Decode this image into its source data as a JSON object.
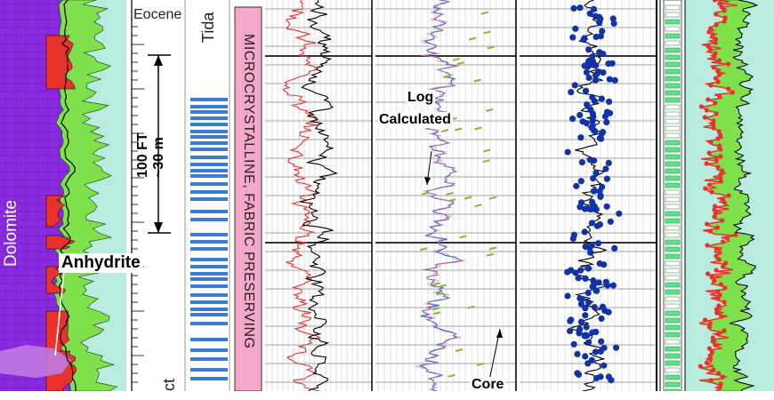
{
  "labels": {
    "eocene": "Eocene",
    "tidal": "Tida",
    "scale_ft": "100 FT",
    "scale_m": "~30 m",
    "facies": "MICROCRYSTALLINE, FABRIC PRESERVING",
    "dolomite": "Dolomite",
    "anhydrite": "Anhydrite",
    "log": "Log",
    "calculated": "Calculated",
    "core": "Core",
    "bottom_left": "ct"
  },
  "colors": {
    "dolomite_fill": "#8a2be2",
    "dolomite_light": "#c07ae0",
    "green_fill": "#7ee04a",
    "red_curve": "#e8322e",
    "blue_curve": "#2b62d6",
    "navy_dots": "#1133aa",
    "aqua_bg": "#b8ecdf",
    "facies_band": "#f2a8c8",
    "tidal_marks": "#3a7bd5"
  }
}
